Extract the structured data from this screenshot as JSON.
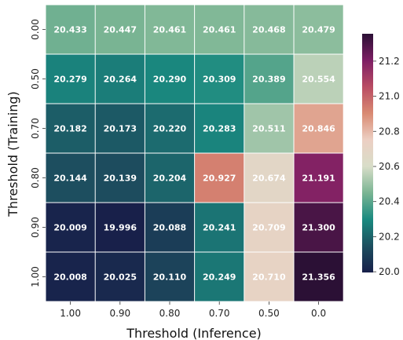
{
  "chart_data": {
    "type": "heatmap",
    "xlabel": "Threshold (Inference)",
    "ylabel": "Threshold (Training)",
    "x_categories": [
      "1.00",
      "0.90",
      "0.80",
      "0.70",
      "0.50",
      "0.0"
    ],
    "y_categories": [
      "0.00",
      "0.50",
      "0.70",
      "0.80",
      "0.90",
      "1.00"
    ],
    "values": [
      [
        20.433,
        20.447,
        20.461,
        20.461,
        20.468,
        20.479
      ],
      [
        20.279,
        20.264,
        20.29,
        20.309,
        20.389,
        20.554
      ],
      [
        20.182,
        20.173,
        20.22,
        20.283,
        20.511,
        20.846
      ],
      [
        20.144,
        20.139,
        20.204,
        20.927,
        20.674,
        21.191
      ],
      [
        20.009,
        19.996,
        20.088,
        20.241,
        20.709,
        21.3
      ],
      [
        20.008,
        20.025,
        20.11,
        20.249,
        20.71,
        21.356
      ]
    ],
    "value_format": "3 decimals",
    "colorbar": {
      "ticks": [
        "20.0",
        "20.2",
        "20.4",
        "20.6",
        "20.8",
        "21.0",
        "21.2"
      ],
      "range": [
        19.996,
        21.356
      ],
      "palette": [
        "#18204a",
        "#1d4f5f",
        "#1a8a80",
        "#7ab593",
        "#d8ddc8",
        "#eccfc3",
        "#d98a72",
        "#b94c63",
        "#7d1e64",
        "#2b1035"
      ]
    }
  }
}
